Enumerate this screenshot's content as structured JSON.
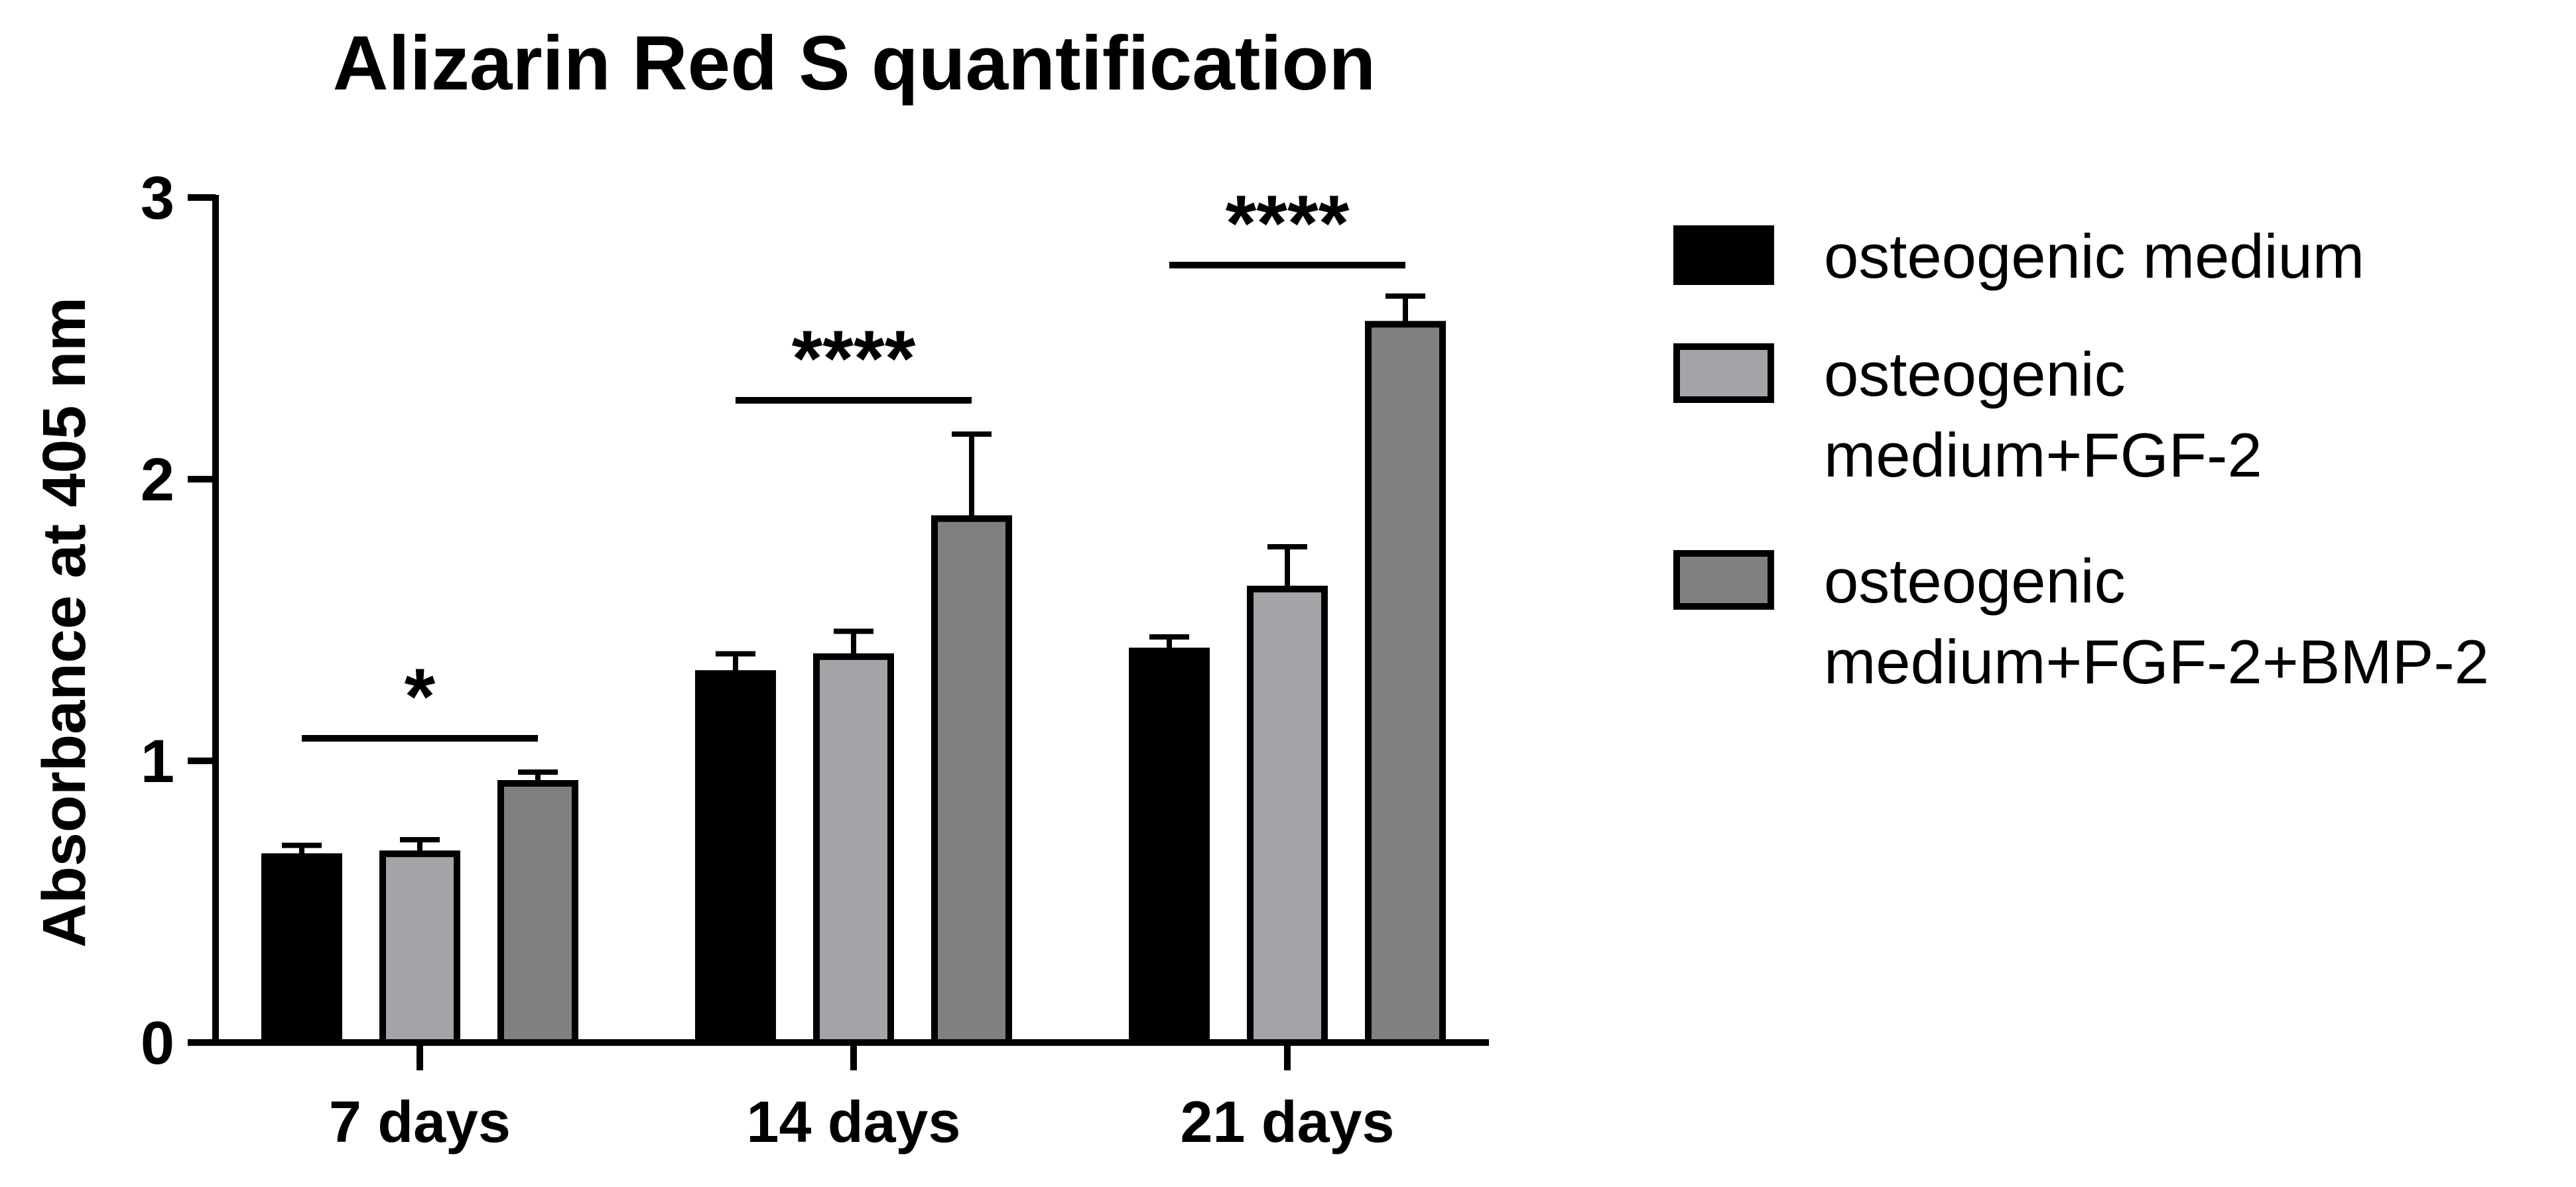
{
  "chart_data": {
    "type": "bar",
    "title": "Alizarin Red S quantification",
    "xlabel": "",
    "ylabel": "Absorbance at 405 nm",
    "ylim": [
      0,
      3
    ],
    "yticks": [
      "0",
      "1",
      "2",
      "3"
    ],
    "categories": [
      "7 days",
      "14 days",
      "21 days"
    ],
    "series": [
      {
        "name": "osteogenic medium",
        "legend_lines": [
          "osteogenic medium"
        ],
        "color": "#000000",
        "values": [
          0.66,
          1.31,
          1.39
        ],
        "errors": [
          0.04,
          0.07,
          0.05
        ]
      },
      {
        "name": "osteogenic medium+FGF-2",
        "legend_lines": [
          "osteogenic",
          "medium+FGF-2"
        ],
        "color": "#a4a4a8",
        "values": [
          0.67,
          1.37,
          1.61
        ],
        "errors": [
          0.05,
          0.09,
          0.15
        ]
      },
      {
        "name": "osteogenic medium+FGF-2+BMP-2",
        "legend_lines": [
          "osteogenic",
          "medium+FGF-2+BMP-2"
        ],
        "color": "#808080",
        "values": [
          0.92,
          1.86,
          2.55
        ],
        "errors": [
          0.04,
          0.3,
          0.1
        ]
      }
    ],
    "significance": [
      {
        "category": "7 days",
        "label": "*",
        "y": 1.08
      },
      {
        "category": "14 days",
        "label": "****",
        "y": 2.28
      },
      {
        "category": "21 days",
        "label": "****",
        "y": 2.76
      }
    ],
    "legend_position": "right",
    "grid": false
  }
}
